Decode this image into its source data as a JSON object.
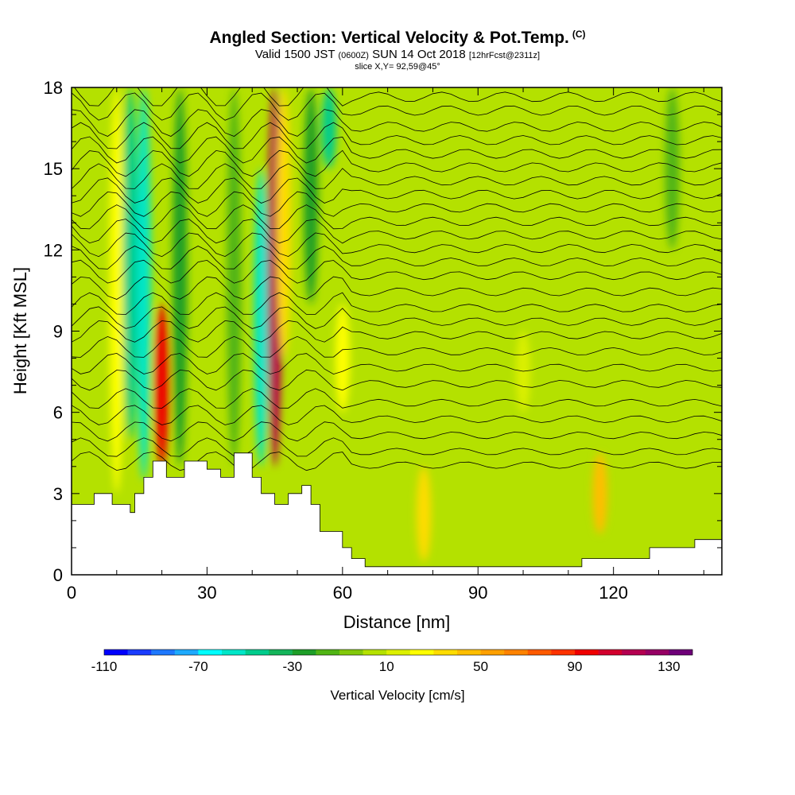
{
  "header": {
    "title": "Angled Section: Vertical Velocity & Pot.Temp.",
    "title_tag": "(C)",
    "valid_prefix": "Valid 1500 JST",
    "valid_utc": "(0600Z)",
    "valid_date": "SUN 14 Oct 2018",
    "forecast": "[12hrFcst@2311z]",
    "slice": "slice X,Y= 92,59@45°"
  },
  "chart_data": {
    "type": "heatmap",
    "xlabel": "Distance [nm]",
    "ylabel": "Height [Kft MSL]",
    "xlim": [
      0,
      144
    ],
    "ylim": [
      0,
      18
    ],
    "xticks": [
      "0",
      "30",
      "60",
      "90",
      "120"
    ],
    "xtick_values": [
      0,
      30,
      60,
      90,
      120
    ],
    "yticks": [
      "0",
      "3",
      "6",
      "9",
      "12",
      "15",
      "18"
    ],
    "ytick_values": [
      0,
      3,
      6,
      9,
      12,
      15,
      18
    ],
    "colorbar": {
      "label": "Vertical Velocity [cm/s]",
      "tick_labels": [
        "-110",
        "-70",
        "-30",
        "10",
        "50",
        "90",
        "130"
      ],
      "tick_values": [
        -110,
        -70,
        -30,
        10,
        50,
        90,
        130
      ],
      "levels": [
        -110,
        -100,
        -90,
        -80,
        -70,
        -60,
        -50,
        -40,
        -30,
        -20,
        -10,
        0,
        10,
        20,
        30,
        40,
        50,
        60,
        70,
        80,
        90,
        100,
        110,
        120,
        130,
        140
      ],
      "colors": [
        "#0000ff",
        "#1a3cff",
        "#1e78ff",
        "#1eaaff",
        "#00ffff",
        "#00e6c8",
        "#00cc8c",
        "#14b45a",
        "#1e9e28",
        "#50b414",
        "#82c80a",
        "#b4e100",
        "#dcf000",
        "#ffff00",
        "#ffdc00",
        "#ffbe00",
        "#ffa000",
        "#ff8200",
        "#ff5a00",
        "#ff3200",
        "#f00000",
        "#d2002d",
        "#b40050",
        "#960064",
        "#6e0078"
      ]
    },
    "vertical_velocity_cells": [
      {
        "x": 10,
        "h0": 3,
        "h1": 18,
        "w": 22
      },
      {
        "x": 13,
        "h0": 5,
        "h1": 18,
        "w": -50
      },
      {
        "x": 16,
        "h0": 3.5,
        "h1": 18,
        "w": -60
      },
      {
        "x": 20,
        "h0": 4,
        "h1": 10,
        "w": 95
      },
      {
        "x": 24,
        "h0": 4,
        "h1": 18,
        "w": -22
      },
      {
        "x": 36,
        "h0": 4,
        "h1": 18,
        "w": -20
      },
      {
        "x": 42,
        "h0": 4,
        "h1": 15,
        "w": -60
      },
      {
        "x": 45,
        "h0": 4,
        "h1": 18,
        "w": 110
      },
      {
        "x": 47,
        "h0": 8,
        "h1": 18,
        "w": 30
      },
      {
        "x": 53,
        "h0": 10,
        "h1": 18,
        "w": -30
      },
      {
        "x": 57,
        "h0": 15,
        "h1": 18,
        "w": -50
      },
      {
        "x": 60,
        "h0": 6,
        "h1": 10,
        "w": 28
      },
      {
        "x": 78,
        "h0": 0.5,
        "h1": 4,
        "w": 32
      },
      {
        "x": 117,
        "h0": 1.5,
        "h1": 4.5,
        "w": 45
      },
      {
        "x": 100,
        "h0": 6,
        "h1": 9,
        "w": 15
      },
      {
        "x": 133,
        "h0": 12,
        "h1": 18,
        "w": -18
      }
    ],
    "terrain": [
      [
        0,
        2.6
      ],
      [
        5,
        2.6
      ],
      [
        5,
        3.0
      ],
      [
        9,
        3.0
      ],
      [
        9,
        2.6
      ],
      [
        13,
        2.6
      ],
      [
        13,
        2.3
      ],
      [
        14,
        2.3
      ],
      [
        14,
        3.0
      ],
      [
        16,
        3.0
      ],
      [
        16,
        3.6
      ],
      [
        18,
        3.6
      ],
      [
        18,
        4.2
      ],
      [
        21,
        4.2
      ],
      [
        21,
        3.6
      ],
      [
        25,
        3.6
      ],
      [
        25,
        4.2
      ],
      [
        30,
        4.2
      ],
      [
        30,
        3.9
      ],
      [
        33,
        3.9
      ],
      [
        33,
        3.6
      ],
      [
        36,
        3.6
      ],
      [
        36,
        4.5
      ],
      [
        40,
        4.5
      ],
      [
        40,
        3.6
      ],
      [
        42,
        3.6
      ],
      [
        42,
        3.0
      ],
      [
        45,
        3.0
      ],
      [
        45,
        2.6
      ],
      [
        48,
        2.6
      ],
      [
        48,
        3.0
      ],
      [
        51,
        3.0
      ],
      [
        51,
        3.3
      ],
      [
        53,
        3.3
      ],
      [
        53,
        2.6
      ],
      [
        55,
        2.6
      ],
      [
        55,
        1.6
      ],
      [
        60,
        1.6
      ],
      [
        60,
        1.0
      ],
      [
        62,
        1.0
      ],
      [
        62,
        0.6
      ],
      [
        65,
        0.6
      ],
      [
        65,
        0.3
      ],
      [
        113,
        0.3
      ],
      [
        113,
        0.6
      ],
      [
        128,
        0.6
      ],
      [
        128,
        1.0
      ],
      [
        138,
        1.0
      ],
      [
        138,
        1.3
      ],
      [
        144,
        1.3
      ]
    ],
    "pot_temp_isentropes_kft": [
      4.2,
      4.7,
      5.3,
      5.9,
      6.5,
      7.2,
      7.8,
      8.4,
      9.0,
      9.5,
      10.0,
      10.6,
      11.2,
      11.7,
      12.2,
      12.7,
      13.2,
      13.7,
      14.2,
      14.7,
      15.2,
      15.7,
      16.2,
      16.7,
      17.3,
      17.8
    ]
  }
}
